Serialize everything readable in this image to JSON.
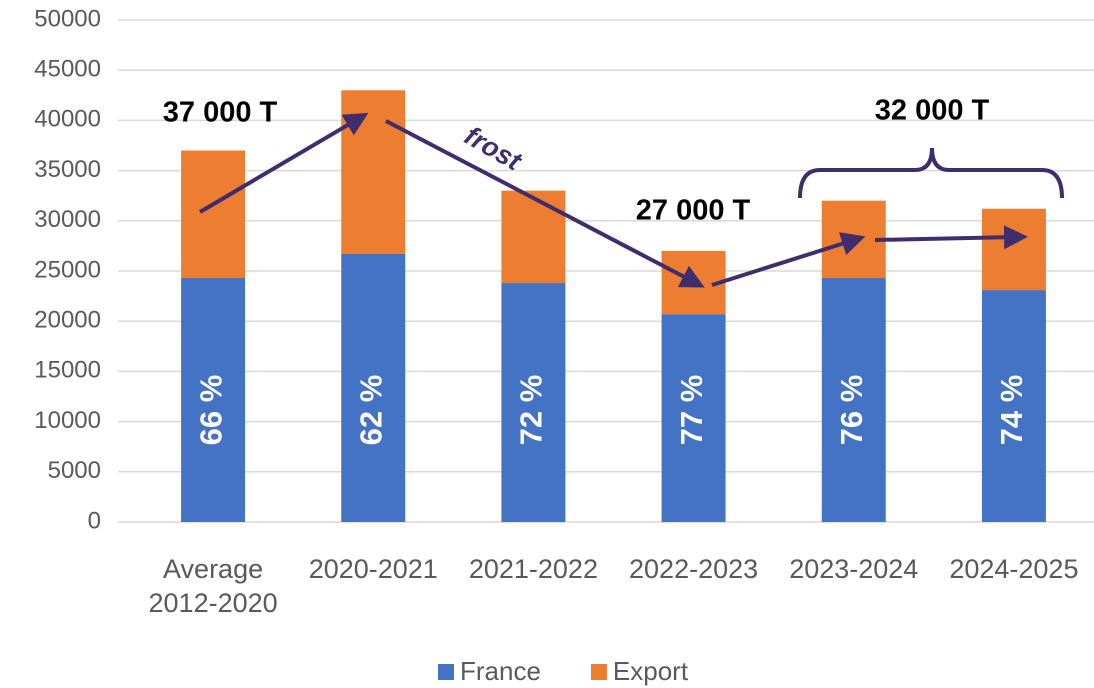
{
  "chart_data": {
    "type": "stacked_bar",
    "categories": [
      "Average 2012-2020",
      "2020-2021",
      "2021-2022",
      "2022-2023",
      "2023-2024",
      "2024-2025"
    ],
    "series": [
      {
        "name": "France",
        "color": "#4472c4",
        "values": [
          24300,
          26700,
          23800,
          20700,
          24300,
          23100
        ]
      },
      {
        "name": "Export",
        "color": "#ed7d31",
        "values": [
          12700,
          16300,
          9200,
          6300,
          7700,
          8100
        ]
      }
    ],
    "share_labels": [
      "66 %",
      "62 %",
      "72 %",
      "77 %",
      "76 %",
      "74 %"
    ],
    "ylim": [
      0,
      50000
    ],
    "yticks": [
      0,
      5000,
      10000,
      15000,
      20000,
      25000,
      30000,
      35000,
      40000,
      45000,
      50000
    ],
    "grid": true,
    "legend": "bottom",
    "annotations": [
      "37 000 T",
      "frost",
      "27 000 T",
      "32 000 T"
    ]
  }
}
